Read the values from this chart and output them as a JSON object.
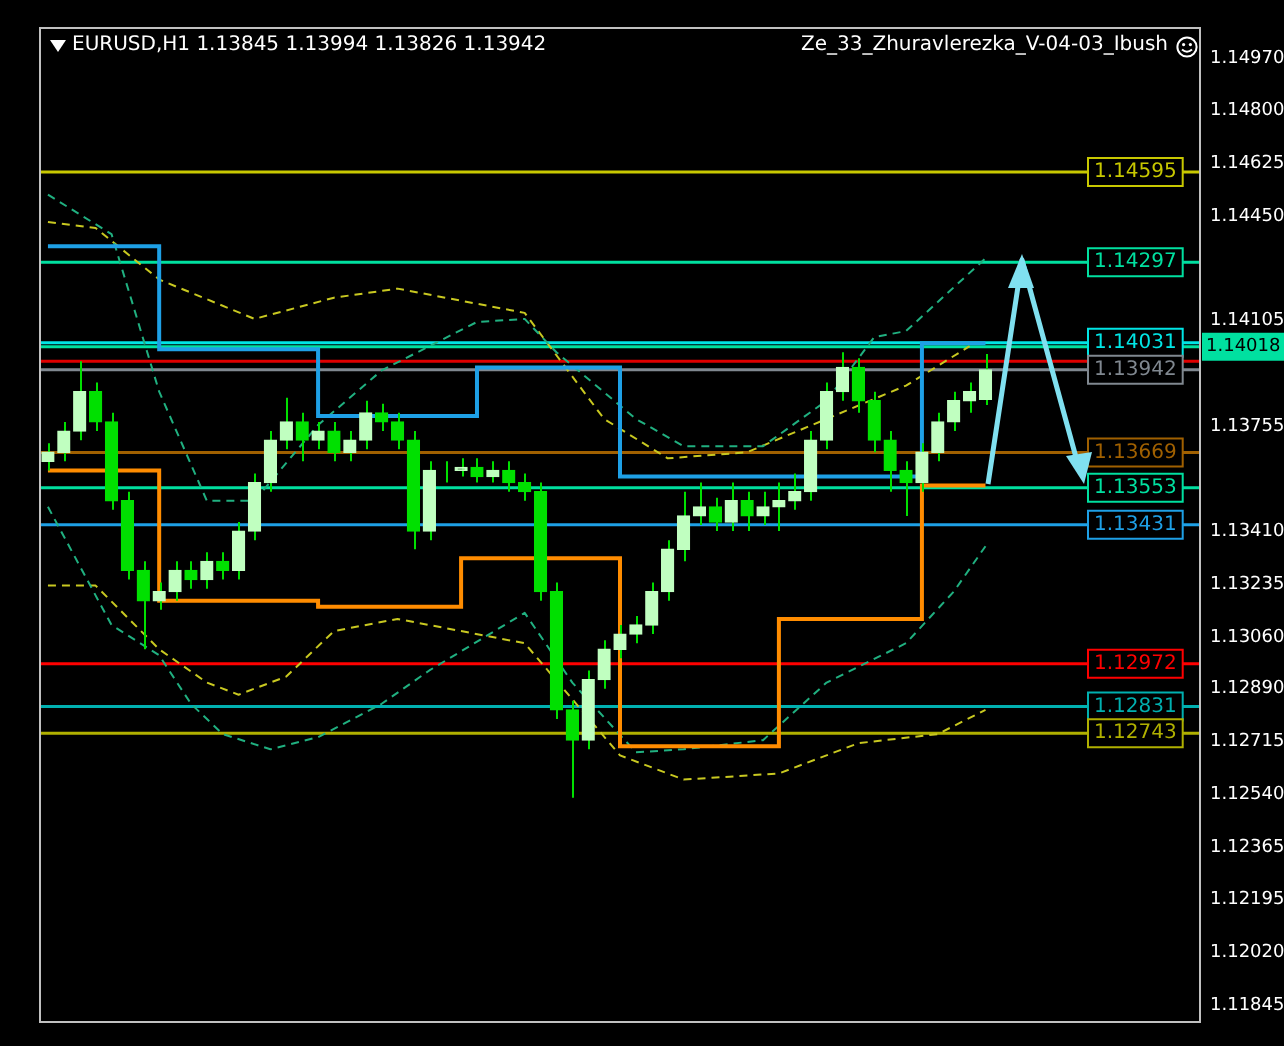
{
  "chart_data": {
    "type": "candlestick",
    "title": "EURUSD,H1  1.13845 1.13994 1.13826 1.13942",
    "annotations": [
      "Ze_33_Zhuravlerezka_V-04-03_Ibush"
    ],
    "categories": [
      null,
      null,
      null,
      null,
      null,
      null,
      null,
      null,
      null,
      null,
      null,
      null,
      null,
      null,
      null,
      null,
      null,
      null,
      null,
      null,
      null,
      null,
      null,
      null,
      null,
      null,
      null,
      null,
      null,
      null,
      null,
      null,
      null,
      null,
      null,
      null,
      null,
      null,
      null,
      null,
      null,
      null,
      null,
      null,
      null,
      null,
      null,
      null,
      null,
      null,
      null,
      null,
      null,
      null,
      null,
      null,
      null,
      null,
      null,
      null,
      null,
      null,
      null,
      null,
      null,
      null,
      null,
      null,
      null,
      null,
      null,
      null,
      null
    ],
    "color": "#00e000",
    "colors": [
      "#c0ffc0",
      "#c0ffc0",
      "#c0ffc0",
      "#00e000",
      "#00e000",
      "#00e000",
      "#00e000",
      "#c0ffc0",
      "#c0ffc0",
      "#00e000",
      "#c0ffc0",
      "#00e000",
      "#c0ffc0",
      "#c0ffc0",
      "#c0ffc0",
      "#c0ffc0",
      "#00e000",
      "#c0ffc0",
      "#00e000",
      "#c0ffc0",
      "#c0ffc0",
      "#00e000",
      "#00e000",
      "#00e000",
      "#c0ffc0",
      "#00e000",
      "#c0ffc0",
      "#00e000",
      "#c0ffc0",
      "#00e000",
      "#00e000",
      "#00e000",
      "#00e000",
      "#00e000",
      "#c0ffc0",
      "#c0ffc0",
      "#c0ffc0",
      "#c0ffc0",
      "#c0ffc0",
      "#c0ffc0",
      "#c0ffc0",
      "#c0ffc0",
      "#00e000",
      "#c0ffc0",
      "#00e000",
      "#c0ffc0",
      "#c0ffc0",
      "#c0ffc0",
      "#c0ffc0",
      "#c0ffc0",
      "#c0ffc0",
      "#00e000",
      "#00e000",
      "#00e000",
      "#00e000",
      "#c0ffc0",
      "#c0ffc0",
      "#c0ffc0",
      "#c0ffc0",
      "#c0ffc0",
      null,
      null,
      null,
      null,
      null,
      null,
      null,
      null,
      null,
      null,
      null,
      null,
      null
    ],
    "ohlc": [
      [
        1.1364,
        1.137,
        1.1361,
        1.1367
      ],
      [
        1.1367,
        1.1377,
        1.1364,
        1.1374
      ],
      [
        1.1374,
        1.1397,
        1.1371,
        1.1387
      ],
      [
        1.1387,
        1.139,
        1.1374,
        1.1377
      ],
      [
        1.1377,
        1.138,
        1.1348,
        1.1351
      ],
      [
        1.1351,
        1.1354,
        1.1325,
        1.1328
      ],
      [
        1.1328,
        1.1331,
        1.1302,
        1.1318
      ],
      [
        1.1318,
        1.1324,
        1.1315,
        1.1321
      ],
      [
        1.1321,
        1.1331,
        1.1318,
        1.1328
      ],
      [
        1.1328,
        1.1331,
        1.1322,
        1.1325
      ],
      [
        1.1325,
        1.1334,
        1.1322,
        1.1331
      ],
      [
        1.1331,
        1.1334,
        1.1325,
        1.1328
      ],
      [
        1.1328,
        1.1344,
        1.1325,
        1.1341
      ],
      [
        1.1341,
        1.136,
        1.1338,
        1.1357
      ],
      [
        1.1357,
        1.1374,
        1.1354,
        1.1371
      ],
      [
        1.1371,
        1.1385,
        1.1368,
        1.1377
      ],
      [
        1.1377,
        1.138,
        1.1364,
        1.1371
      ],
      [
        1.1371,
        1.1377,
        1.1368,
        1.1374
      ],
      [
        1.1374,
        1.1377,
        1.1364,
        1.1367
      ],
      [
        1.1367,
        1.1374,
        1.1364,
        1.1371
      ],
      [
        1.1371,
        1.1384,
        1.1368,
        1.138
      ],
      [
        1.138,
        1.1383,
        1.1374,
        1.1377
      ],
      [
        1.1377,
        1.138,
        1.1368,
        1.1371
      ],
      [
        1.1371,
        1.1374,
        1.1335,
        1.1341
      ],
      [
        1.1341,
        1.1364,
        1.1338,
        1.1361
      ],
      [
        1.1361,
        1.1364,
        1.1357,
        1.1361
      ],
      [
        1.1361,
        1.1365,
        1.1359,
        1.1362
      ],
      [
        1.1362,
        1.1365,
        1.1357,
        1.1359
      ],
      [
        1.1359,
        1.1364,
        1.1357,
        1.1361
      ],
      [
        1.1361,
        1.1364,
        1.1354,
        1.1357
      ],
      [
        1.1357,
        1.136,
        1.1351,
        1.1354
      ],
      [
        1.1354,
        1.1357,
        1.1318,
        1.1321
      ],
      [
        1.1321,
        1.1324,
        1.1279,
        1.1282
      ],
      [
        1.1282,
        1.1285,
        1.1253,
        1.1272
      ],
      [
        1.1272,
        1.1295,
        1.1269,
        1.1292
      ],
      [
        1.1292,
        1.1305,
        1.1289,
        1.1302
      ],
      [
        1.1302,
        1.131,
        1.1299,
        1.1307
      ],
      [
        1.1307,
        1.1313,
        1.1304,
        1.131
      ],
      [
        1.131,
        1.1324,
        1.1307,
        1.1321
      ],
      [
        1.1321,
        1.1338,
        1.1318,
        1.1335
      ],
      [
        1.1335,
        1.1354,
        1.1331,
        1.1346
      ],
      [
        1.1346,
        1.1357,
        1.1343,
        1.1349
      ],
      [
        1.1349,
        1.1352,
        1.1341,
        1.1344
      ],
      [
        1.1344,
        1.1357,
        1.1341,
        1.1351
      ],
      [
        1.1351,
        1.1354,
        1.1341,
        1.1346
      ],
      [
        1.1346,
        1.1354,
        1.1343,
        1.1349
      ],
      [
        1.1349,
        1.1357,
        1.1341,
        1.1351
      ],
      [
        1.1351,
        1.136,
        1.1348,
        1.1354
      ],
      [
        1.1354,
        1.1374,
        1.1351,
        1.1371
      ],
      [
        1.1371,
        1.139,
        1.1368,
        1.1387
      ],
      [
        1.1387,
        1.14,
        1.1384,
        1.1395
      ],
      [
        1.1395,
        1.1398,
        1.138,
        1.1384
      ],
      [
        1.1384,
        1.1387,
        1.1367,
        1.1371
      ],
      [
        1.1371,
        1.1374,
        1.1354,
        1.1361
      ],
      [
        1.1361,
        1.1364,
        1.1346,
        1.1357
      ],
      [
        1.1357,
        1.137,
        1.1354,
        1.1367
      ],
      [
        1.1367,
        1.138,
        1.1364,
        1.1377
      ],
      [
        1.1377,
        1.1387,
        1.1374,
        1.1384
      ],
      [
        1.1384,
        1.139,
        1.138,
        1.1387
      ],
      [
        1.13845,
        1.13994,
        1.13826,
        1.13942
      ],
      null,
      null,
      null,
      null,
      null,
      null,
      null,
      null,
      null,
      null,
      null,
      null,
      null
    ],
    "series": [
      {
        "type": "step",
        "color": "#1ea0e6",
        "values": [
          1.1435,
          1.1435,
          1.1435,
          1.1435,
          1.1435,
          1.1435,
          1.1435,
          1.1401,
          1.1401,
          1.1401,
          1.1401,
          1.1401,
          1.1401,
          1.1401,
          1.1401,
          1.1401,
          1.1401,
          1.1379,
          1.1379,
          1.1379,
          1.1379,
          1.1379,
          1.1379,
          1.1379,
          1.1379,
          1.1379,
          1.1379,
          1.1395,
          1.1395,
          1.1395,
          1.1395,
          1.1395,
          1.1395,
          1.1395,
          1.1395,
          1.1395,
          1.1359,
          1.1359,
          1.1359,
          1.1359,
          1.1359,
          1.1359,
          1.1359,
          1.1359,
          1.1359,
          1.1359,
          1.1359,
          1.1359,
          1.1359,
          1.1359,
          1.1359,
          1.1359,
          1.1359,
          1.1359,
          1.1359,
          1.1403,
          1.1403,
          1.1403,
          1.1403,
          1.1403,
          null,
          null,
          null,
          null,
          null,
          null,
          null,
          null,
          null,
          null,
          null,
          null,
          null
        ]
      },
      {
        "type": "step",
        "color": "#ff8c00",
        "values": [
          1.1361,
          1.1361,
          1.1361,
          1.1361,
          1.1361,
          1.1361,
          1.1361,
          1.1318,
          1.1318,
          1.1318,
          1.1318,
          1.1318,
          1.1318,
          1.1318,
          1.1318,
          1.1318,
          1.1318,
          1.1316,
          1.1316,
          1.1316,
          1.1316,
          1.1316,
          1.1316,
          1.1316,
          1.1316,
          1.1316,
          1.1332,
          1.1332,
          1.1332,
          1.1332,
          1.1332,
          1.1332,
          1.1332,
          1.1332,
          1.1332,
          1.1332,
          1.127,
          1.127,
          1.127,
          1.127,
          1.127,
          1.127,
          1.127,
          1.127,
          1.127,
          1.127,
          1.1312,
          1.1312,
          1.1312,
          1.1312,
          1.1312,
          1.1312,
          1.1312,
          1.1312,
          1.1312,
          1.1356,
          1.1356,
          1.1356,
          1.1356,
          1.1356,
          null,
          null,
          null,
          null,
          null,
          null,
          null,
          null,
          null,
          null,
          null,
          null,
          null
        ]
      },
      {
        "type": "line",
        "line_style": "dashed",
        "color": "#20b080",
        "values": [
          1.1452,
          null,
          null,
          null,
          1.1439,
          null,
          null,
          1.1387,
          null,
          null,
          1.1351,
          null,
          null,
          1.1351,
          null,
          null,
          null,
          1.1376,
          null,
          null,
          null,
          1.1394,
          null,
          null,
          null,
          null,
          null,
          1.141,
          null,
          null,
          1.1411,
          null,
          1.14,
          null,
          null,
          null,
          null,
          1.1378,
          null,
          null,
          1.1369,
          null,
          null,
          null,
          null,
          1.1369,
          null,
          null,
          null,
          1.1384,
          null,
          null,
          1.1405,
          null,
          1.1407,
          null,
          null,
          null,
          null,
          1.1431,
          null,
          null,
          null,
          null,
          null,
          null,
          null,
          null,
          null,
          null,
          null,
          null,
          null
        ]
      },
      {
        "type": "line",
        "line_style": "dashed",
        "color": "#20b080",
        "values": [
          1.1349,
          null,
          null,
          null,
          1.131,
          null,
          null,
          1.13,
          null,
          1.1284,
          null,
          1.1274,
          null,
          null,
          1.1269,
          null,
          null,
          1.1273,
          null,
          null,
          null,
          1.1284,
          null,
          null,
          1.1295,
          null,
          null,
          null,
          null,
          null,
          1.1314,
          null,
          null,
          1.1291,
          null,
          null,
          null,
          1.1268,
          null,
          null,
          1.1269,
          null,
          null,
          null,
          null,
          1.1272,
          null,
          null,
          null,
          1.1291,
          null,
          null,
          null,
          null,
          1.1304,
          null,
          null,
          1.1321,
          null,
          1.1336,
          null,
          null,
          null,
          null,
          null,
          null,
          null,
          null,
          null,
          null,
          null,
          null,
          null
        ]
      },
      {
        "type": "line",
        "line_style": "dashed",
        "color": "#c8c820",
        "values": [
          1.1443,
          null,
          null,
          1.1441,
          null,
          null,
          null,
          1.1424,
          null,
          null,
          null,
          null,
          null,
          1.1411,
          null,
          null,
          null,
          null,
          1.1418,
          null,
          null,
          null,
          1.1421,
          null,
          null,
          null,
          null,
          1.1416,
          null,
          null,
          1.1413,
          null,
          null,
          null,
          null,
          1.1378,
          null,
          null,
          null,
          1.1365,
          null,
          null,
          null,
          null,
          1.1367,
          null,
          null,
          null,
          null,
          1.1378,
          null,
          null,
          null,
          null,
          1.1389,
          null,
          null,
          null,
          1.1402,
          null,
          null,
          null,
          null,
          null,
          null,
          null,
          null,
          null,
          null,
          null,
          null,
          null,
          null
        ]
      },
      {
        "type": "line",
        "line_style": "dashed",
        "color": "#c8c820",
        "values": [
          1.1323,
          null,
          null,
          1.1323,
          null,
          null,
          null,
          1.1302,
          null,
          null,
          1.1291,
          null,
          1.1287,
          null,
          null,
          1.1293,
          null,
          null,
          1.1308,
          null,
          null,
          null,
          1.1312,
          null,
          null,
          null,
          1.1308,
          null,
          null,
          null,
          1.1304,
          null,
          null,
          null,
          null,
          null,
          1.1267,
          null,
          null,
          null,
          1.1259,
          null,
          null,
          null,
          null,
          null,
          1.1261,
          null,
          null,
          null,
          null,
          1.1271,
          null,
          null,
          null,
          null,
          1.1274,
          null,
          null,
          1.1282,
          null,
          null,
          null,
          null,
          null,
          null,
          null,
          null,
          null,
          null,
          null,
          null,
          null
        ]
      }
    ],
    "ylim": [
      1.1179,
      1.1507
    ],
    "yticks": [
      {
        "value": 1.1497,
        "label": "1.14970"
      },
      {
        "value": 1.148,
        "label": "1.14800"
      },
      1.14625,
      {
        "value": 1.1445,
        "label": "1.14450"
      },
      1.14105,
      1.13755,
      {
        "value": 1.1341,
        "label": "1.13410"
      },
      1.13235,
      {
        "value": 1.1306,
        "label": "1.13060"
      },
      {
        "value": 1.1289,
        "label": "1.12890"
      },
      1.12715,
      {
        "value": 1.1254,
        "label": "1.12540"
      },
      1.12365,
      1.12195,
      {
        "value": 1.1202,
        "label": "1.12020"
      },
      1.11845
    ],
    "ref_lines": [
      {
        "axis": "y",
        "value": 1.14595,
        "label": "1.14595",
        "color": "#c8c800"
      },
      {
        "axis": "y",
        "value": 1.14297,
        "label": "1.14297",
        "color": "#00e0a0"
      },
      {
        "axis": "y",
        "value": 1.14031,
        "label": "1.14031",
        "color": "#00e5e5"
      },
      {
        "axis": "y",
        "value": 1.14018,
        "label": "1.14018",
        "color": "#00e0a0"
      },
      {
        "axis": "y",
        "value": 1.1397,
        "label": null,
        "color": "#e00000"
      },
      {
        "axis": "y",
        "value": 1.13942,
        "label": "1.13942",
        "color": "#808890"
      },
      {
        "axis": "y",
        "value": 1.13669,
        "label": "1.13669",
        "color": "#a06000"
      },
      {
        "axis": "y",
        "value": 1.13553,
        "label": "1.13553",
        "color": "#00e0a0"
      },
      {
        "axis": "y",
        "value": 1.13431,
        "label": "1.13431",
        "color": "#1ea0e6"
      },
      {
        "axis": "y",
        "value": 1.12972,
        "label": "1.12972",
        "color": "#ff0000"
      },
      {
        "axis": "y",
        "value": 1.12831,
        "label": "1.12831",
        "color": "#00b0b0"
      },
      {
        "axis": "y",
        "value": 1.12743,
        "label": "1.12743",
        "color": "#b0b000"
      }
    ],
    "tick_labels": "y"
  }
}
